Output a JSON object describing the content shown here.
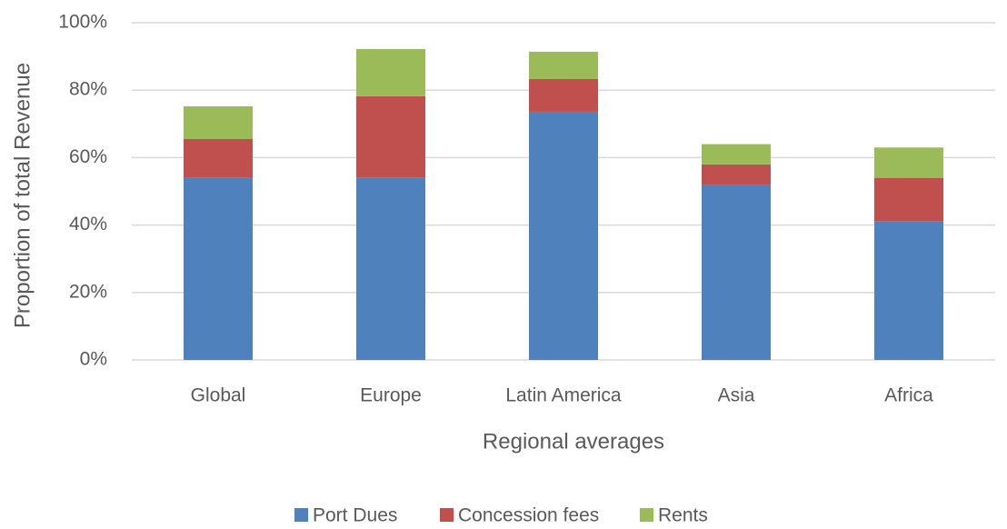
{
  "chart_data": {
    "type": "stacked_bar",
    "x_label": "Regional averages",
    "y_label": "Proportion  of total Revenue",
    "categories": [
      "Global",
      "Europe",
      "Latin America",
      "Asia",
      "Africa"
    ],
    "series": [
      {
        "name": "Port Dues",
        "color": "#4f81bd",
        "values": [
          54,
          54,
          73.6,
          52,
          41.2
        ]
      },
      {
        "name": "Concession fees",
        "color": "#c0504d",
        "values": [
          11.5,
          24.2,
          9.7,
          6,
          12.8
        ]
      },
      {
        "name": "Rents",
        "color": "#9bbb59",
        "values": [
          9.7,
          14,
          8.1,
          6,
          9
        ]
      }
    ],
    "ylim": [
      0,
      100
    ],
    "yticks": [
      {
        "value": 0,
        "label": "0%"
      },
      {
        "value": 20,
        "label": "20%"
      },
      {
        "value": 40,
        "label": "40%"
      },
      {
        "value": 60,
        "label": "60%"
      },
      {
        "value": 80,
        "label": "80%"
      },
      {
        "value": 100,
        "label": "100%"
      }
    ],
    "grid": true,
    "legend": "bottom"
  }
}
